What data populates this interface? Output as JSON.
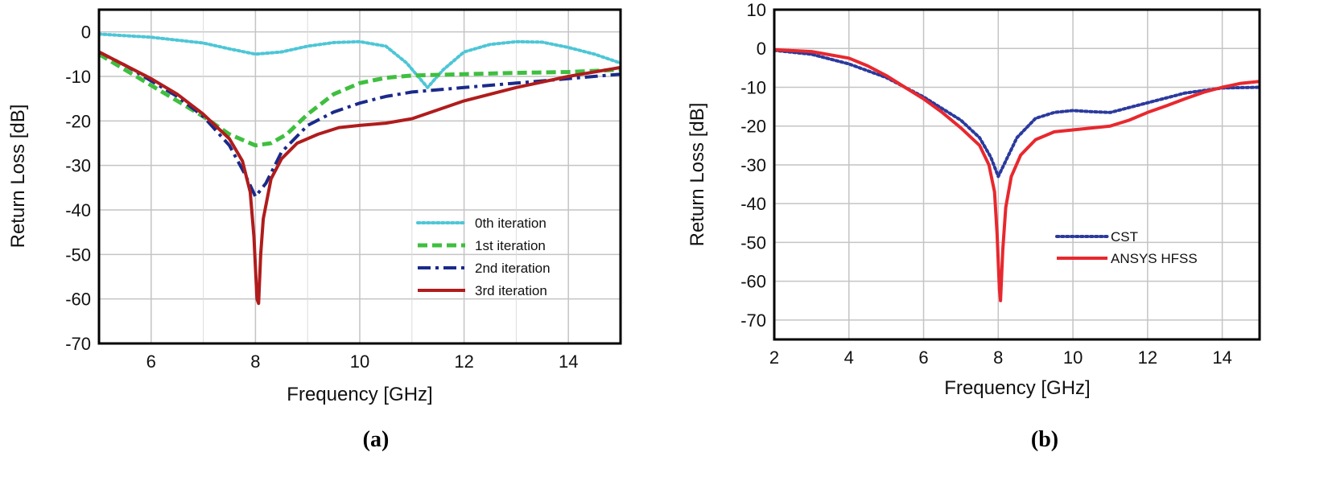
{
  "chart_data": [
    {
      "type": "line",
      "panel_label": "(a)",
      "xlabel": "Frequency [GHz]",
      "ylabel": "Return Loss [dB]",
      "xlim": [
        5,
        15
      ],
      "ylim": [
        -70,
        5
      ],
      "xticks": [
        "6",
        "8",
        "10",
        "12",
        "14"
      ],
      "yticks": [
        "0",
        "-10",
        "-20",
        "-30",
        "-40",
        "-50",
        "-60",
        "-70"
      ],
      "legend": "bottom-right",
      "series": [
        {
          "name": "0th iteration",
          "color": "#4dc6d6",
          "style": "dotted",
          "x": [
            5,
            6,
            7,
            7.5,
            8,
            8.5,
            9,
            9.5,
            10,
            10.5,
            10.9,
            11.3,
            11.6,
            12,
            12.5,
            13,
            13.5,
            14,
            14.5,
            15
          ],
          "y": [
            -0.5,
            -1.2,
            -2.5,
            -3.8,
            -5,
            -4.5,
            -3.2,
            -2.4,
            -2.2,
            -3.2,
            -7,
            -12.5,
            -8.5,
            -4.5,
            -2.8,
            -2.2,
            -2.3,
            -3.5,
            -5,
            -7
          ]
        },
        {
          "name": "1st iteration",
          "color": "#3fbf3f",
          "style": "dashed",
          "x": [
            5,
            5.5,
            6,
            6.5,
            7,
            7.5,
            8,
            8.3,
            8.6,
            9,
            9.5,
            10,
            10.5,
            11,
            12,
            13,
            14,
            15
          ],
          "y": [
            -5,
            -8.5,
            -12,
            -15.5,
            -19,
            -23,
            -25.5,
            -25,
            -23,
            -18.5,
            -14,
            -11.5,
            -10.3,
            -9.8,
            -9.5,
            -9.2,
            -9,
            -8.5
          ]
        },
        {
          "name": "2nd iteration",
          "color": "#1a2a8a",
          "style": "dashdot",
          "x": [
            5,
            5.5,
            6,
            6.5,
            7,
            7.5,
            7.8,
            8,
            8.2,
            8.5,
            9,
            9.5,
            10,
            10.5,
            11,
            12,
            13,
            14,
            15
          ],
          "y": [
            -4.5,
            -7.5,
            -11,
            -14.5,
            -19,
            -25.5,
            -32,
            -37,
            -34,
            -27,
            -21,
            -18,
            -16,
            -14.5,
            -13.5,
            -12.5,
            -11.5,
            -10.5,
            -9.5
          ]
        },
        {
          "name": "3rd iteration",
          "color": "#b01c1c",
          "style": "solid",
          "x": [
            5,
            5.5,
            6,
            6.5,
            7,
            7.5,
            7.75,
            7.9,
            7.97,
            8.03,
            8.06,
            8.1,
            8.15,
            8.3,
            8.5,
            8.8,
            9.2,
            9.6,
            10,
            10.5,
            11,
            11.5,
            12,
            13,
            14,
            15
          ],
          "y": [
            -4.5,
            -7.5,
            -10.5,
            -14,
            -18.5,
            -24,
            -29,
            -36,
            -46,
            -60,
            -61,
            -50,
            -42,
            -33,
            -28.5,
            -25,
            -23,
            -21.5,
            -21,
            -20.5,
            -19.5,
            -17.5,
            -15.5,
            -12.5,
            -10,
            -8
          ]
        }
      ]
    },
    {
      "type": "line",
      "panel_label": "(b)",
      "xlabel": "Frequency [GHz]",
      "ylabel": "Return Loss [dB]",
      "xlim": [
        2,
        15
      ],
      "ylim": [
        -75,
        10
      ],
      "xticks": [
        "2",
        "4",
        "6",
        "8",
        "10",
        "12",
        "14"
      ],
      "yticks": [
        "10",
        "0",
        "-10",
        "-20",
        "-30",
        "-40",
        "-50",
        "-60",
        "-70"
      ],
      "legend": "bottom-right",
      "series": [
        {
          "name": "CST",
          "color": "#2b3a9e",
          "style": "dotted",
          "x": [
            2,
            3,
            4,
            5,
            6,
            7,
            7.5,
            7.8,
            8,
            8.2,
            8.5,
            9,
            9.5,
            10,
            10.5,
            11,
            12,
            13,
            14,
            15
          ],
          "y": [
            -0.5,
            -1.5,
            -4,
            -7.5,
            -12.5,
            -18.5,
            -23,
            -28,
            -33,
            -29,
            -23,
            -18,
            -16.5,
            -16,
            -16.3,
            -16.5,
            -14,
            -11.5,
            -10.2,
            -10
          ]
        },
        {
          "name": "ANSYS HFSS",
          "color": "#e8282e",
          "style": "solid",
          "x": [
            2,
            3,
            4,
            4.5,
            5,
            5.5,
            6,
            6.5,
            7,
            7.5,
            7.75,
            7.9,
            7.97,
            8.03,
            8.06,
            8.12,
            8.2,
            8.35,
            8.6,
            9,
            9.5,
            10,
            10.5,
            11,
            11.5,
            12,
            12.5,
            13,
            13.5,
            14,
            14.5,
            15
          ],
          "y": [
            -0.3,
            -0.8,
            -2.5,
            -4.5,
            -7,
            -10,
            -13,
            -16.5,
            -20.5,
            -25,
            -30,
            -37,
            -48,
            -62,
            -65,
            -52,
            -41,
            -33,
            -27.5,
            -23.5,
            -21.5,
            -21,
            -20.5,
            -20,
            -18.5,
            -16.5,
            -14.8,
            -13,
            -11.3,
            -10,
            -9,
            -8.5
          ]
        }
      ]
    }
  ]
}
